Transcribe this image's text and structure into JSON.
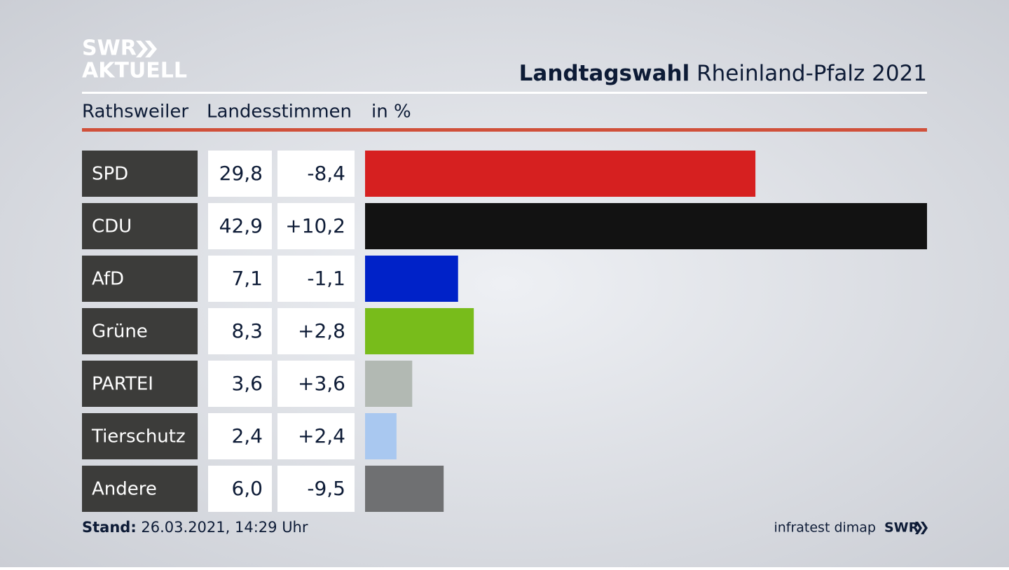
{
  "logo_top": "SWR",
  "logo_bottom": "AKTUELL",
  "chart_data": {
    "type": "bar",
    "title_bold": "Landtagswahl",
    "title": "Rheinland-Pfalz 2021",
    "subtitle": [
      "Rathsweiler",
      "Landesstimmen",
      "in %"
    ],
    "categories": [
      "SPD",
      "CDU",
      "AfD",
      "Grüne",
      "PARTEI",
      "Tierschutz",
      "Andere"
    ],
    "values": [
      29.8,
      42.9,
      7.1,
      8.3,
      3.6,
      2.4,
      6.0
    ],
    "value_labels": [
      "29,8",
      "42,9",
      "7,1",
      "8,3",
      "3,6",
      "2,4",
      "6,0"
    ],
    "changes": [
      -8.4,
      10.2,
      -1.1,
      2.8,
      3.6,
      2.4,
      -9.5
    ],
    "change_labels": [
      "-8,4",
      "+10,2",
      "-1,1",
      "+2,8",
      "+3,6",
      "+2,4",
      "-9,5"
    ],
    "colors": [
      "#d62020",
      "#121212",
      "#0022c8",
      "#78bc1b",
      "#b2b9b3",
      "#a9c8f0",
      "#6f7072"
    ],
    "xlim": [
      0,
      42.9
    ],
    "footer_label": "Stand:",
    "footer_date": "26.03.2021, 14:29 Uhr",
    "source": "infratest dimap",
    "source_logo": "SWR"
  }
}
